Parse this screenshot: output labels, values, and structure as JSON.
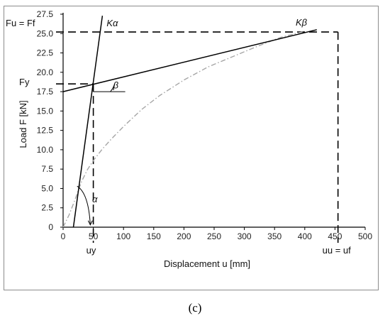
{
  "panel_label": "(c)",
  "colors": {
    "axis": "#000000",
    "lines": "#000000",
    "curve": "#a6a6a6"
  },
  "chart_data": {
    "type": "line",
    "xlabel": "Displacement u [mm]",
    "ylabel": "Load F [kN]",
    "xlim": [
      0,
      500
    ],
    "ylim": [
      0,
      27.5
    ],
    "xticks": [
      0,
      50,
      100,
      150,
      200,
      250,
      300,
      350,
      400,
      450,
      500
    ],
    "yticks": [
      0.0,
      2.5,
      5.0,
      7.5,
      10.0,
      12.5,
      15.0,
      17.5,
      20.0,
      22.5,
      25.0,
      27.5
    ],
    "xtick_labels": [
      "0",
      "50",
      "100",
      "150",
      "200",
      "250",
      "300",
      "350",
      "400",
      "450",
      "500"
    ],
    "ytick_labels": [
      "0",
      "2.5",
      "5.0",
      "7.5",
      "10.0",
      "12.5",
      "15.0",
      "17.5",
      "20.0",
      "22.5",
      "25.0",
      "27.5"
    ],
    "grid": false,
    "series": [
      {
        "style": "dash-dot",
        "color": "#a6a6a6",
        "x": [
          0,
          10,
          20,
          30,
          40,
          50,
          65,
          80,
          100,
          130,
          160,
          200,
          240,
          280,
          320,
          360,
          400
        ],
        "y": [
          0,
          1.6,
          3.6,
          5.8,
          7.4,
          8.6,
          10.1,
          11.4,
          13.0,
          15.2,
          17.0,
          19.0,
          20.7,
          22.0,
          23.3,
          24.5,
          25.3
        ]
      },
      {
        "name_label": "Kα",
        "style": "solid",
        "color": "#000000",
        "x": [
          17,
          65
        ],
        "y": [
          0,
          27.3
        ]
      },
      {
        "name_label": "Kβ",
        "style": "solid",
        "color": "#000000",
        "x": [
          0,
          420
        ],
        "y": [
          17.5,
          25.5
        ]
      }
    ],
    "reference_lines": {
      "Fu": 25.2,
      "Fy": 18.5,
      "uy": 50,
      "uu": 455
    },
    "annotations": {
      "fu_ff": "Fu = Ff",
      "fy": "Fy",
      "k_alpha": "Kα",
      "k_beta": "Kβ",
      "beta": "β",
      "alpha": "α",
      "uy": "uy",
      "uu_uf": "uu = uf"
    }
  }
}
